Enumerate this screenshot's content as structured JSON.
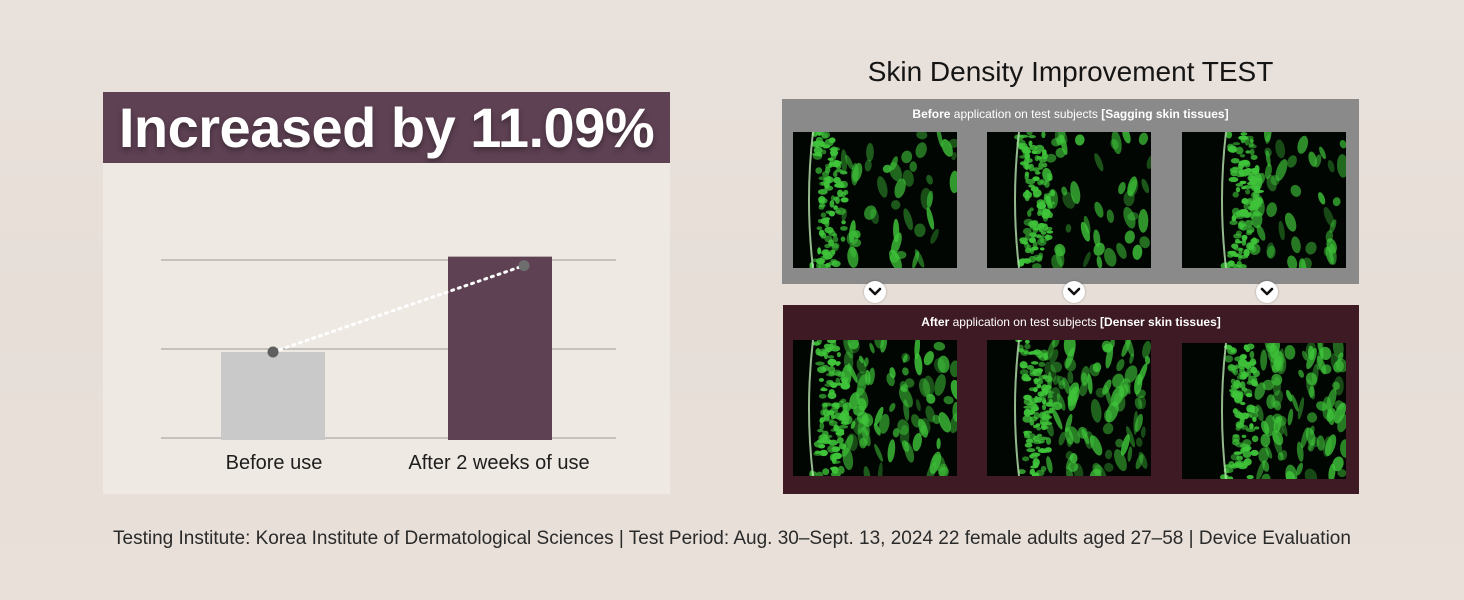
{
  "headline": "Increased by 11.09%",
  "test": {
    "title": "Skin Density Improvement TEST",
    "before": {
      "lead": "Before",
      "middle": " application on test subjects ",
      "bracket": "[Sagging skin tissues]"
    },
    "after": {
      "lead": "After",
      "middle": " application on test subjects ",
      "bracket": "[Denser skin tissues]"
    },
    "image_icon": "skin-tissue-scan",
    "arrow_icon": "chevron-down-icon"
  },
  "footer": "Testing Institute: Korea Institute of Dermatological Sciences | Test Period: Aug. 30–Sept. 13, 2024 22 female adults aged 27–58 | Device Evaluation",
  "colors": {
    "accent": "#5e4153",
    "before_bar": "#c9c9c9",
    "after_bar": "#5e4153",
    "after_panel": "#3e1b24",
    "before_panel": "#8a8a8a",
    "tissue_green": "#3fc43a"
  },
  "chart_data": {
    "type": "bar",
    "categories": [
      "Before use",
      "After 2 weeks of use"
    ],
    "values": [
      100,
      111.09
    ],
    "ylim": [
      90,
      115
    ],
    "grid": true,
    "trend_line": "dotted",
    "title": "",
    "xlabel": "",
    "ylabel": ""
  }
}
